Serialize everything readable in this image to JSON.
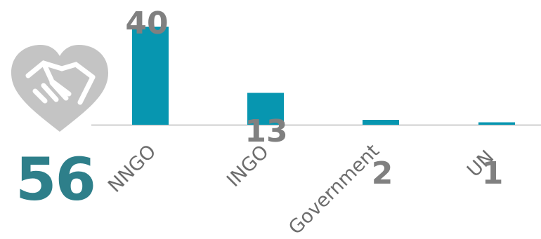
{
  "total": "56",
  "colors": {
    "bar": "#0796b0",
    "total": "#2e7f8a",
    "icon": "#c4c4c4",
    "label": "#808080",
    "axis": "#cfcfcf"
  },
  "icon": "handshake-heart-icon",
  "chart_data": {
    "type": "bar",
    "categories": [
      "NNGO",
      "INGO",
      "Government",
      "UN"
    ],
    "values": [
      40,
      13,
      2,
      1
    ],
    "value_labels": [
      "40",
      "13",
      "2",
      "1"
    ],
    "title": "",
    "xlabel": "",
    "ylabel": "",
    "ylim": [
      0,
      40
    ]
  }
}
